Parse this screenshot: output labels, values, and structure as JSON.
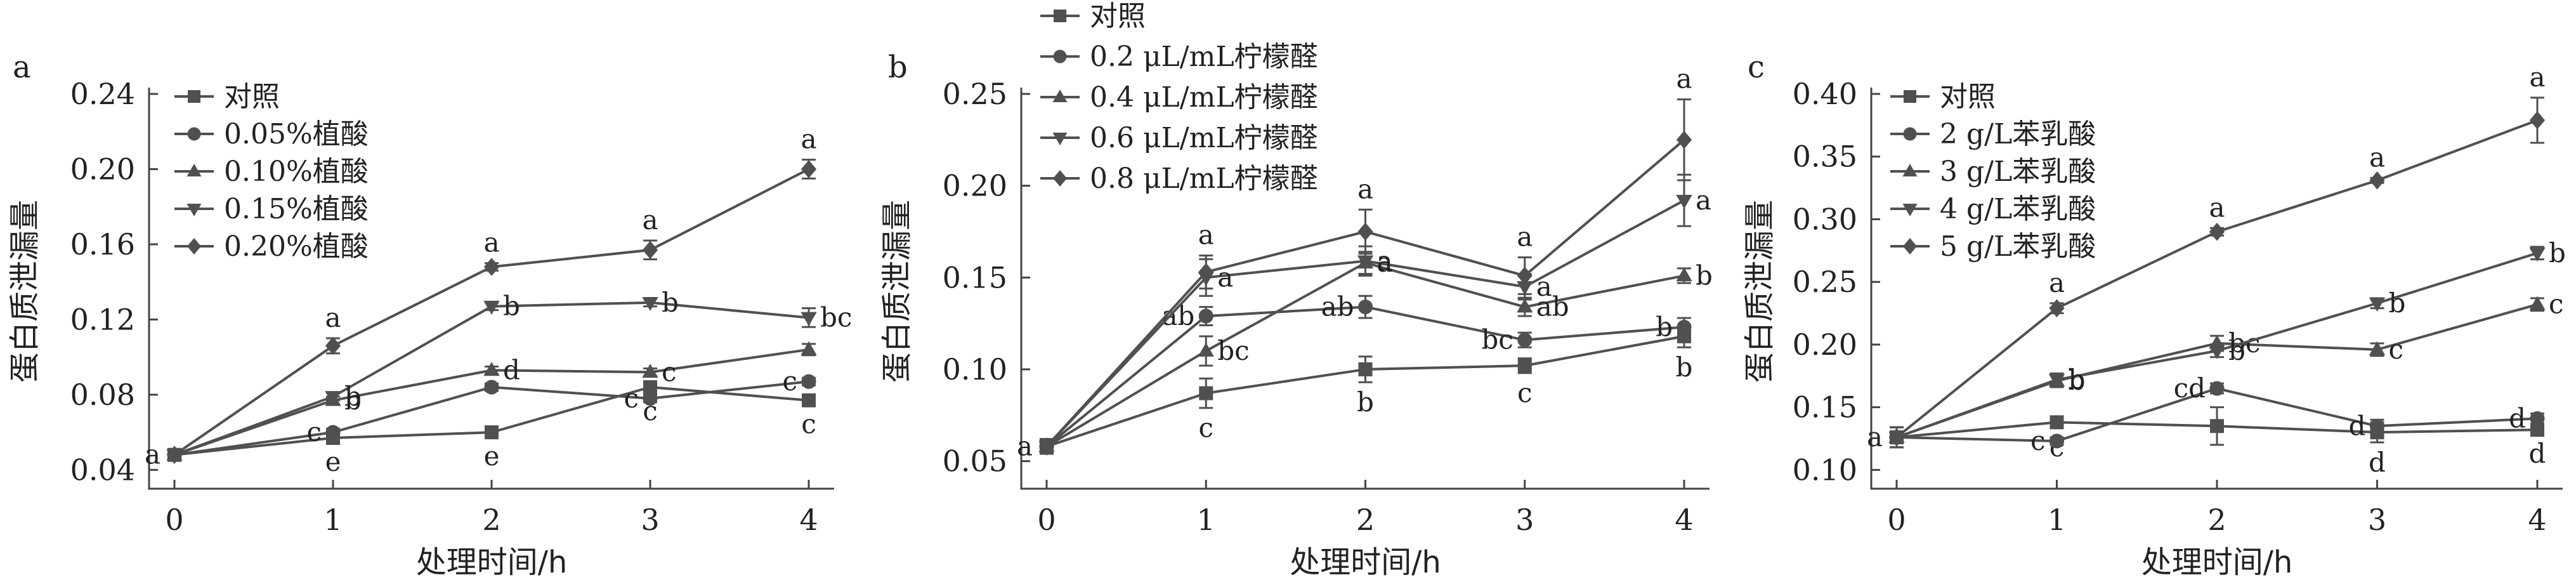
{
  "figure": {
    "colors": {
      "axis": "#444444",
      "series": "#505050",
      "text": "#222222"
    }
  },
  "chart_data": [
    {
      "type": "line",
      "panel_label": "a",
      "xlabel": "处理时间/h",
      "ylabel": "蛋白质泄漏量",
      "x": [
        0,
        1,
        2,
        3,
        4
      ],
      "x_ticks": [
        "0",
        "1",
        "2",
        "3",
        "4"
      ],
      "xlim": [
        0,
        4
      ],
      "ylim": [
        0.03,
        0.24
      ],
      "y_ticks": [
        "0.04",
        "0.08",
        "0.12",
        "0.16",
        "0.20",
        "0.24"
      ],
      "y_tick_values": [
        0.04,
        0.08,
        0.12,
        0.16,
        0.2,
        0.24
      ],
      "legend_position": "top-left",
      "series": [
        {
          "name": "对照",
          "marker": "square",
          "values": [
            0.048,
            0.057,
            0.06,
            0.084,
            0.077
          ],
          "errors": [
            0.003,
            0.002,
            0.002,
            0.002,
            0.002
          ],
          "labels": [
            "a",
            "e",
            "e",
            "c",
            "c"
          ]
        },
        {
          "name": "0.05%植酸",
          "marker": "circle",
          "values": [
            0.048,
            0.06,
            0.084,
            0.078,
            0.087
          ],
          "errors": [
            0.003,
            0.002,
            0.002,
            0.002,
            0.002
          ],
          "labels": [
            "",
            "c",
            "",
            "c",
            "c"
          ]
        },
        {
          "name": "0.10%植酸",
          "marker": "triangle-up",
          "values": [
            0.048,
            0.077,
            0.093,
            0.092,
            0.104
          ],
          "errors": [
            0.003,
            0.002,
            0.002,
            0.002,
            0.003
          ],
          "labels": [
            "",
            "b",
            "d",
            "c",
            ""
          ]
        },
        {
          "name": "0.15%植酸",
          "marker": "triangle-down",
          "values": [
            0.048,
            0.079,
            0.127,
            0.129,
            0.121
          ],
          "errors": [
            0.003,
            0.002,
            0.002,
            0.002,
            0.005
          ],
          "labels": [
            "",
            "b",
            "b",
            "b",
            "bc"
          ]
        },
        {
          "name": "0.20%植酸",
          "marker": "diamond",
          "values": [
            0.048,
            0.106,
            0.148,
            0.157,
            0.2
          ],
          "errors": [
            0.003,
            0.004,
            0.002,
            0.005,
            0.005
          ],
          "labels": [
            "",
            "a",
            "a",
            "a",
            "a"
          ]
        }
      ]
    },
    {
      "type": "line",
      "panel_label": "b",
      "xlabel": "处理时间/h",
      "ylabel": "蛋白质泄漏量",
      "x": [
        0,
        1,
        2,
        3,
        4
      ],
      "x_ticks": [
        "0",
        "1",
        "2",
        "3",
        "4"
      ],
      "xlim": [
        0,
        4
      ],
      "ylim": [
        0.035,
        0.25
      ],
      "y_ticks": [
        "0.05",
        "0.10",
        "0.15",
        "0.20",
        "0.25"
      ],
      "y_tick_values": [
        0.05,
        0.1,
        0.15,
        0.2,
        0.25
      ],
      "legend_position": "top-left",
      "series": [
        {
          "name": "对照",
          "marker": "square",
          "values": [
            0.058,
            0.087,
            0.1,
            0.102,
            0.118
          ],
          "errors": [
            0.004,
            0.008,
            0.007,
            0.004,
            0.006
          ],
          "labels": [
            "a",
            "c",
            "b",
            "c",
            "b"
          ]
        },
        {
          "name": "0.2 μL/mL柠檬醛",
          "marker": "circle",
          "values": [
            0.058,
            0.129,
            0.134,
            0.116,
            0.123
          ],
          "errors": [
            0.004,
            0.005,
            0.006,
            0.004,
            0.005
          ],
          "labels": [
            "",
            "ab",
            "ab",
            "bc",
            "b"
          ]
        },
        {
          "name": "0.4 μL/mL柠檬醛",
          "marker": "triangle-up",
          "values": [
            0.058,
            0.11,
            0.158,
            0.134,
            0.151
          ],
          "errors": [
            0.004,
            0.008,
            0.006,
            0.005,
            0.004
          ],
          "labels": [
            "",
            "bc",
            "a",
            "ab",
            "b"
          ]
        },
        {
          "name": "0.6 μL/mL柠檬醛",
          "marker": "triangle-down",
          "values": [
            0.058,
            0.15,
            0.159,
            0.145,
            0.192
          ],
          "errors": [
            0.004,
            0.01,
            0.008,
            0.007,
            0.014
          ],
          "labels": [
            "",
            "a",
            "a",
            "a",
            "a"
          ]
        },
        {
          "name": "0.8 μL/mL柠檬醛",
          "marker": "diamond",
          "values": [
            0.058,
            0.153,
            0.175,
            0.151,
            0.225
          ],
          "errors": [
            0.004,
            0.009,
            0.012,
            0.01,
            0.022
          ],
          "labels": [
            "",
            "a",
            "a",
            "a",
            "a"
          ]
        }
      ]
    },
    {
      "type": "line",
      "panel_label": "c",
      "xlabel": "处理时间/h",
      "ylabel": "蛋白质泄漏量",
      "x": [
        0,
        1,
        2,
        3,
        4
      ],
      "x_ticks": [
        "0",
        "1",
        "2",
        "3",
        "4"
      ],
      "xlim": [
        0,
        4
      ],
      "ylim": [
        0.085,
        0.4
      ],
      "y_ticks": [
        "0.10",
        "0.15",
        "0.20",
        "0.25",
        "0.30",
        "0.35",
        "0.40"
      ],
      "y_tick_values": [
        0.1,
        0.15,
        0.2,
        0.25,
        0.3,
        0.35,
        0.4
      ],
      "legend_position": "top-left",
      "series": [
        {
          "name": "对照",
          "marker": "square",
          "values": [
            0.126,
            0.138,
            0.135,
            0.13,
            0.132
          ],
          "errors": [
            0.008,
            0.004,
            0.015,
            0.008,
            0.003
          ],
          "labels": [
            "a",
            "c",
            "",
            "d",
            "d"
          ]
        },
        {
          "name": "2 g/L苯乳酸",
          "marker": "circle",
          "values": [
            0.126,
            0.123,
            0.165,
            0.135,
            0.141
          ],
          "errors": [
            0.008,
            0.003,
            0.004,
            0.005,
            0.004
          ],
          "labels": [
            "",
            "c",
            "cd",
            "d",
            "d"
          ]
        },
        {
          "name": "3 g/L苯乳酸",
          "marker": "triangle-up",
          "values": [
            0.126,
            0.171,
            0.201,
            0.196,
            0.232
          ],
          "errors": [
            0.008,
            0.005,
            0.006,
            0.005,
            0.005
          ],
          "labels": [
            "",
            "b",
            "bc",
            "c",
            "c"
          ]
        },
        {
          "name": "4 g/L苯乳酸",
          "marker": "triangle-down",
          "values": [
            0.126,
            0.172,
            0.195,
            0.233,
            0.273
          ],
          "errors": [
            0.008,
            0.005,
            0.005,
            0.004,
            0.005
          ],
          "labels": [
            "",
            "b",
            "b",
            "b",
            "b"
          ]
        },
        {
          "name": "5 g/L苯乳酸",
          "marker": "diamond",
          "values": [
            0.126,
            0.229,
            0.29,
            0.331,
            0.379
          ],
          "errors": [
            0.008,
            0.004,
            0.003,
            0.002,
            0.018
          ],
          "labels": [
            "",
            "a",
            "a",
            "a",
            "a"
          ]
        }
      ]
    }
  ]
}
